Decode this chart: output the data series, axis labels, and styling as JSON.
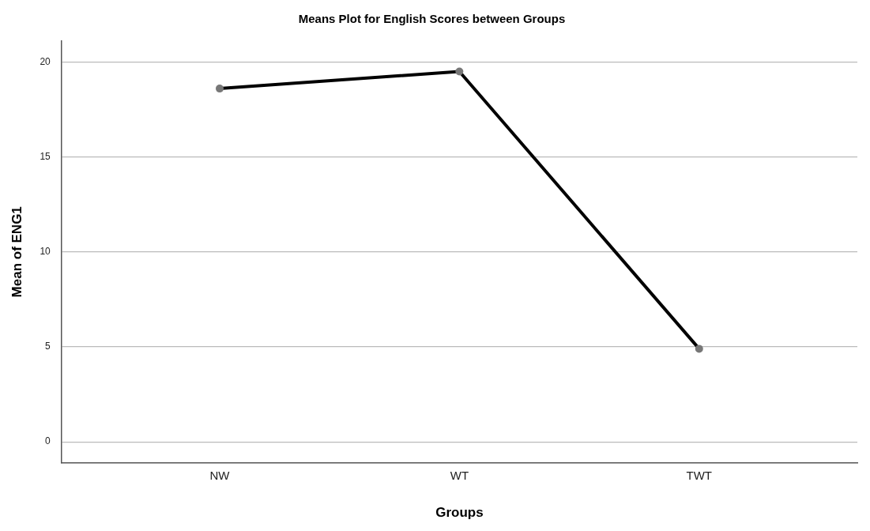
{
  "chart_data": {
    "type": "line",
    "title": "Means Plot for English Scores between Groups",
    "xlabel": "Groups",
    "ylabel": "Mean of ENG1",
    "categories": [
      "NW",
      "WT",
      "TWT"
    ],
    "series": [
      {
        "color": "#000000",
        "values": [
          18.6,
          19.5,
          4.9
        ]
      }
    ],
    "ylim": [
      -1.1,
      21.1
    ],
    "yticks": [
      0,
      5,
      10,
      15,
      20
    ],
    "grid": "y",
    "legend": false,
    "marker": "circle",
    "line_style": "solid"
  }
}
